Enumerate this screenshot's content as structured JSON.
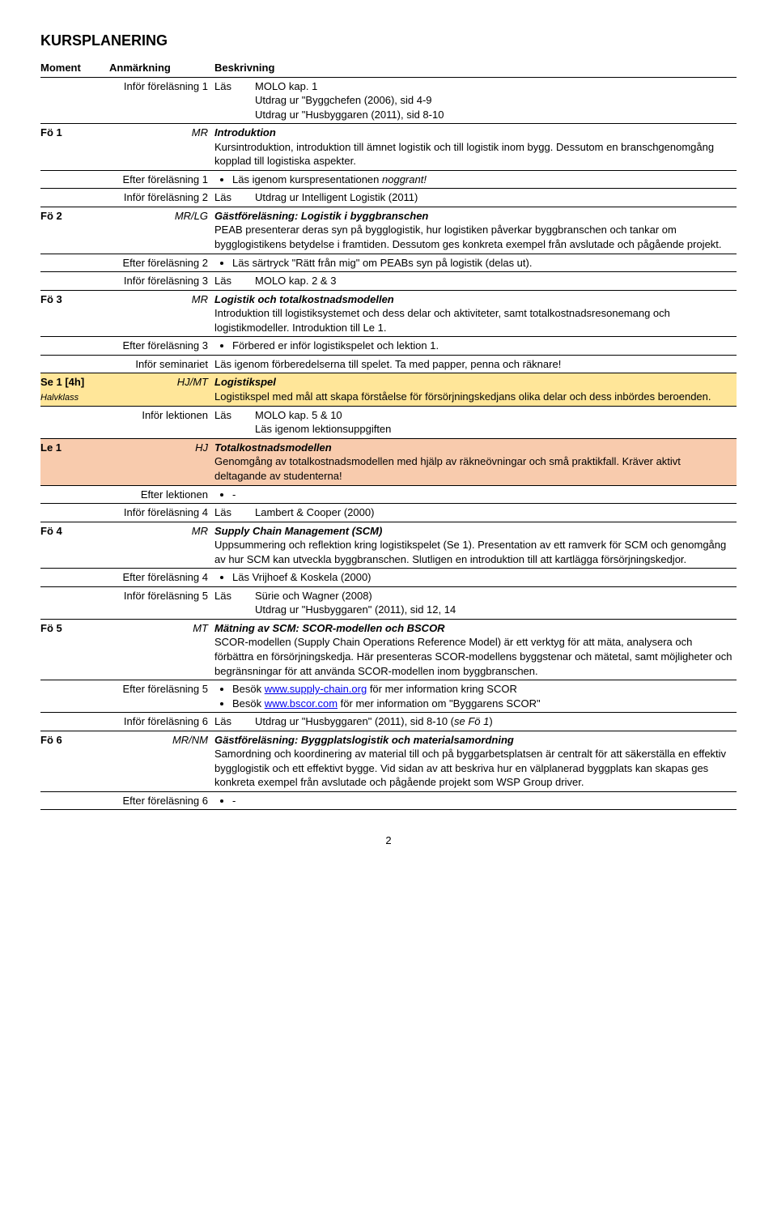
{
  "title": "KURSPLANERING",
  "headers": {
    "moment": "Moment",
    "anm": "Anmärkning",
    "besk": "Beskrivning"
  },
  "rows": [
    {
      "type": "pre",
      "anm": "Inför föreläsning 1",
      "col3": "Läs",
      "desc": "MOLO kap. 1\nUtdrag ur \"Byggchefen (2006), sid 4-9\nUtdrag ur \"Husbyggaren (2011), sid 8-10"
    },
    {
      "type": "main",
      "moment": "Fö 1",
      "anm": "MR",
      "title": "Introduktion",
      "desc": "Kursintroduktion, introduktion till ämnet logistik och till logistik inom bygg. Dessutom en branschgenomgång kopplad till logistiska aspekter."
    },
    {
      "type": "post",
      "anm": "Efter föreläsning 1",
      "bullets": [
        "Läs igenom kurspresentationen <i>noggrant!</i>"
      ]
    },
    {
      "type": "pre",
      "anm": "Inför föreläsning 2",
      "col3": "Läs",
      "desc": "Utdrag ur Intelligent Logistik (2011)"
    },
    {
      "type": "main",
      "moment": "Fö 2",
      "anm": "MR/LG",
      "title": "Gästföreläsning: Logistik i byggbranschen",
      "desc": "PEAB presenterar deras syn på bygglogistik, hur logistiken påverkar byggbranschen och tankar om bygglogistikens betydelse i framtiden. Dessutom ges konkreta exempel från avslutade och pågående projekt."
    },
    {
      "type": "post",
      "anm": "Efter föreläsning 2",
      "bullets": [
        "Läs särtryck \"Rätt från mig\" om PEABs syn på logistik (delas ut)."
      ]
    },
    {
      "type": "pre",
      "anm": "Inför föreläsning 3",
      "col3": "Läs",
      "desc": "MOLO kap. 2 & 3"
    },
    {
      "type": "main",
      "moment": "Fö 3",
      "anm": "MR",
      "title": "Logistik och totalkostnadsmodellen",
      "desc": "Introduktion till logistiksystemet och dess delar och aktiviteter, samt totalkostnadsresonemang och logistikmodeller. Introduktion till Le 1."
    },
    {
      "type": "post",
      "anm": "Efter föreläsning 3",
      "bullets": [
        "Förbered er inför logistikspelet och lektion 1."
      ]
    },
    {
      "type": "pre",
      "anm": "Inför seminariet",
      "desc": "Läs igenom förberedelserna till spelet. Ta med papper, penna och räknare!"
    },
    {
      "type": "main",
      "color": "yellow",
      "moment": "Se 1 [4h]",
      "momentSub": "Halvklass",
      "anm": "HJ/MT",
      "title": "Logistikspel",
      "desc": "Logistikspel med mål att skapa förståelse för försörjningskedjans olika delar och dess inbördes beroenden."
    },
    {
      "type": "pre",
      "anm": "Inför lektionen",
      "col3": "Läs",
      "desc": "MOLO kap. 5 & 10\nLäs igenom lektionsuppgiften"
    },
    {
      "type": "main",
      "color": "orange",
      "moment": "Le 1",
      "anm": "HJ",
      "title": "Totalkostnadsmodellen",
      "desc": "Genomgång av totalkostnadsmodellen med hjälp av räkneövningar och små praktikfall. Kräver aktivt deltagande av studenterna!"
    },
    {
      "type": "post",
      "anm": "Efter lektionen",
      "bullets": [
        "-"
      ]
    },
    {
      "type": "pre",
      "anm": "Inför föreläsning 4",
      "col3": "Läs",
      "desc": "Lambert & Cooper (2000)"
    },
    {
      "type": "main",
      "moment": "Fö 4",
      "anm": "MR",
      "title": "Supply Chain Management (SCM)",
      "desc": "Uppsummering och reflektion kring logistikspelet (Se 1). Presentation av ett ramverk för SCM och genomgång av hur SCM kan utveckla byggbranschen. Slutligen en introduktion till att kartlägga försörjningskedjor."
    },
    {
      "type": "post",
      "anm": "Efter föreläsning 4",
      "bullets": [
        "Läs Vrijhoef & Koskela (2000)"
      ]
    },
    {
      "type": "pre",
      "anm": "Inför föreläsning 5",
      "col3": "Läs",
      "desc": "Sürie och Wagner (2008)\nUtdrag ur \"Husbyggaren\" (2011), sid 12, 14"
    },
    {
      "type": "main",
      "moment": "Fö 5",
      "anm": "MT",
      "title": "Mätning av SCM: SCOR-modellen och BSCOR",
      "desc": "SCOR-modellen (Supply Chain Operations Reference Model) är ett verktyg för att mäta, analysera och förbättra en försörjningskedja. Här presenteras SCOR-modellens byggstenar och mätetal, samt möjligheter och begränsningar för att använda SCOR-modellen inom byggbranschen."
    },
    {
      "type": "post",
      "anm": "Efter föreläsning 5",
      "bullets": [
        "Besök <a href=\"#\">www.supply-chain.org</a> för mer information kring SCOR",
        "Besök <a href=\"#\">www.bscor.com</a> för mer information om \"Byggarens SCOR\""
      ]
    },
    {
      "type": "pre",
      "anm": "Inför föreläsning 6",
      "col3": "Läs",
      "desc": "Utdrag ur \"Husbyggaren\" (2011), sid 8-10 (<i>se Fö 1</i>)"
    },
    {
      "type": "main",
      "moment": "Fö 6",
      "anm": "MR/NM",
      "title": "Gästföreläsning: Byggplatslogistik och materialsamordning",
      "desc": "Samordning och koordinering av material till och på byggarbetsplatsen är centralt för att säkerställa en effektiv bygglogistik och ett effektivt bygge. Vid sidan av att beskriva hur en välplanerad byggplats kan skapas ges konkreta exempel från avslutade och pågående projekt som WSP Group driver."
    },
    {
      "type": "post",
      "anm": "Efter föreläsning 6",
      "bullets": [
        "-"
      ]
    }
  ],
  "pageNum": "2"
}
